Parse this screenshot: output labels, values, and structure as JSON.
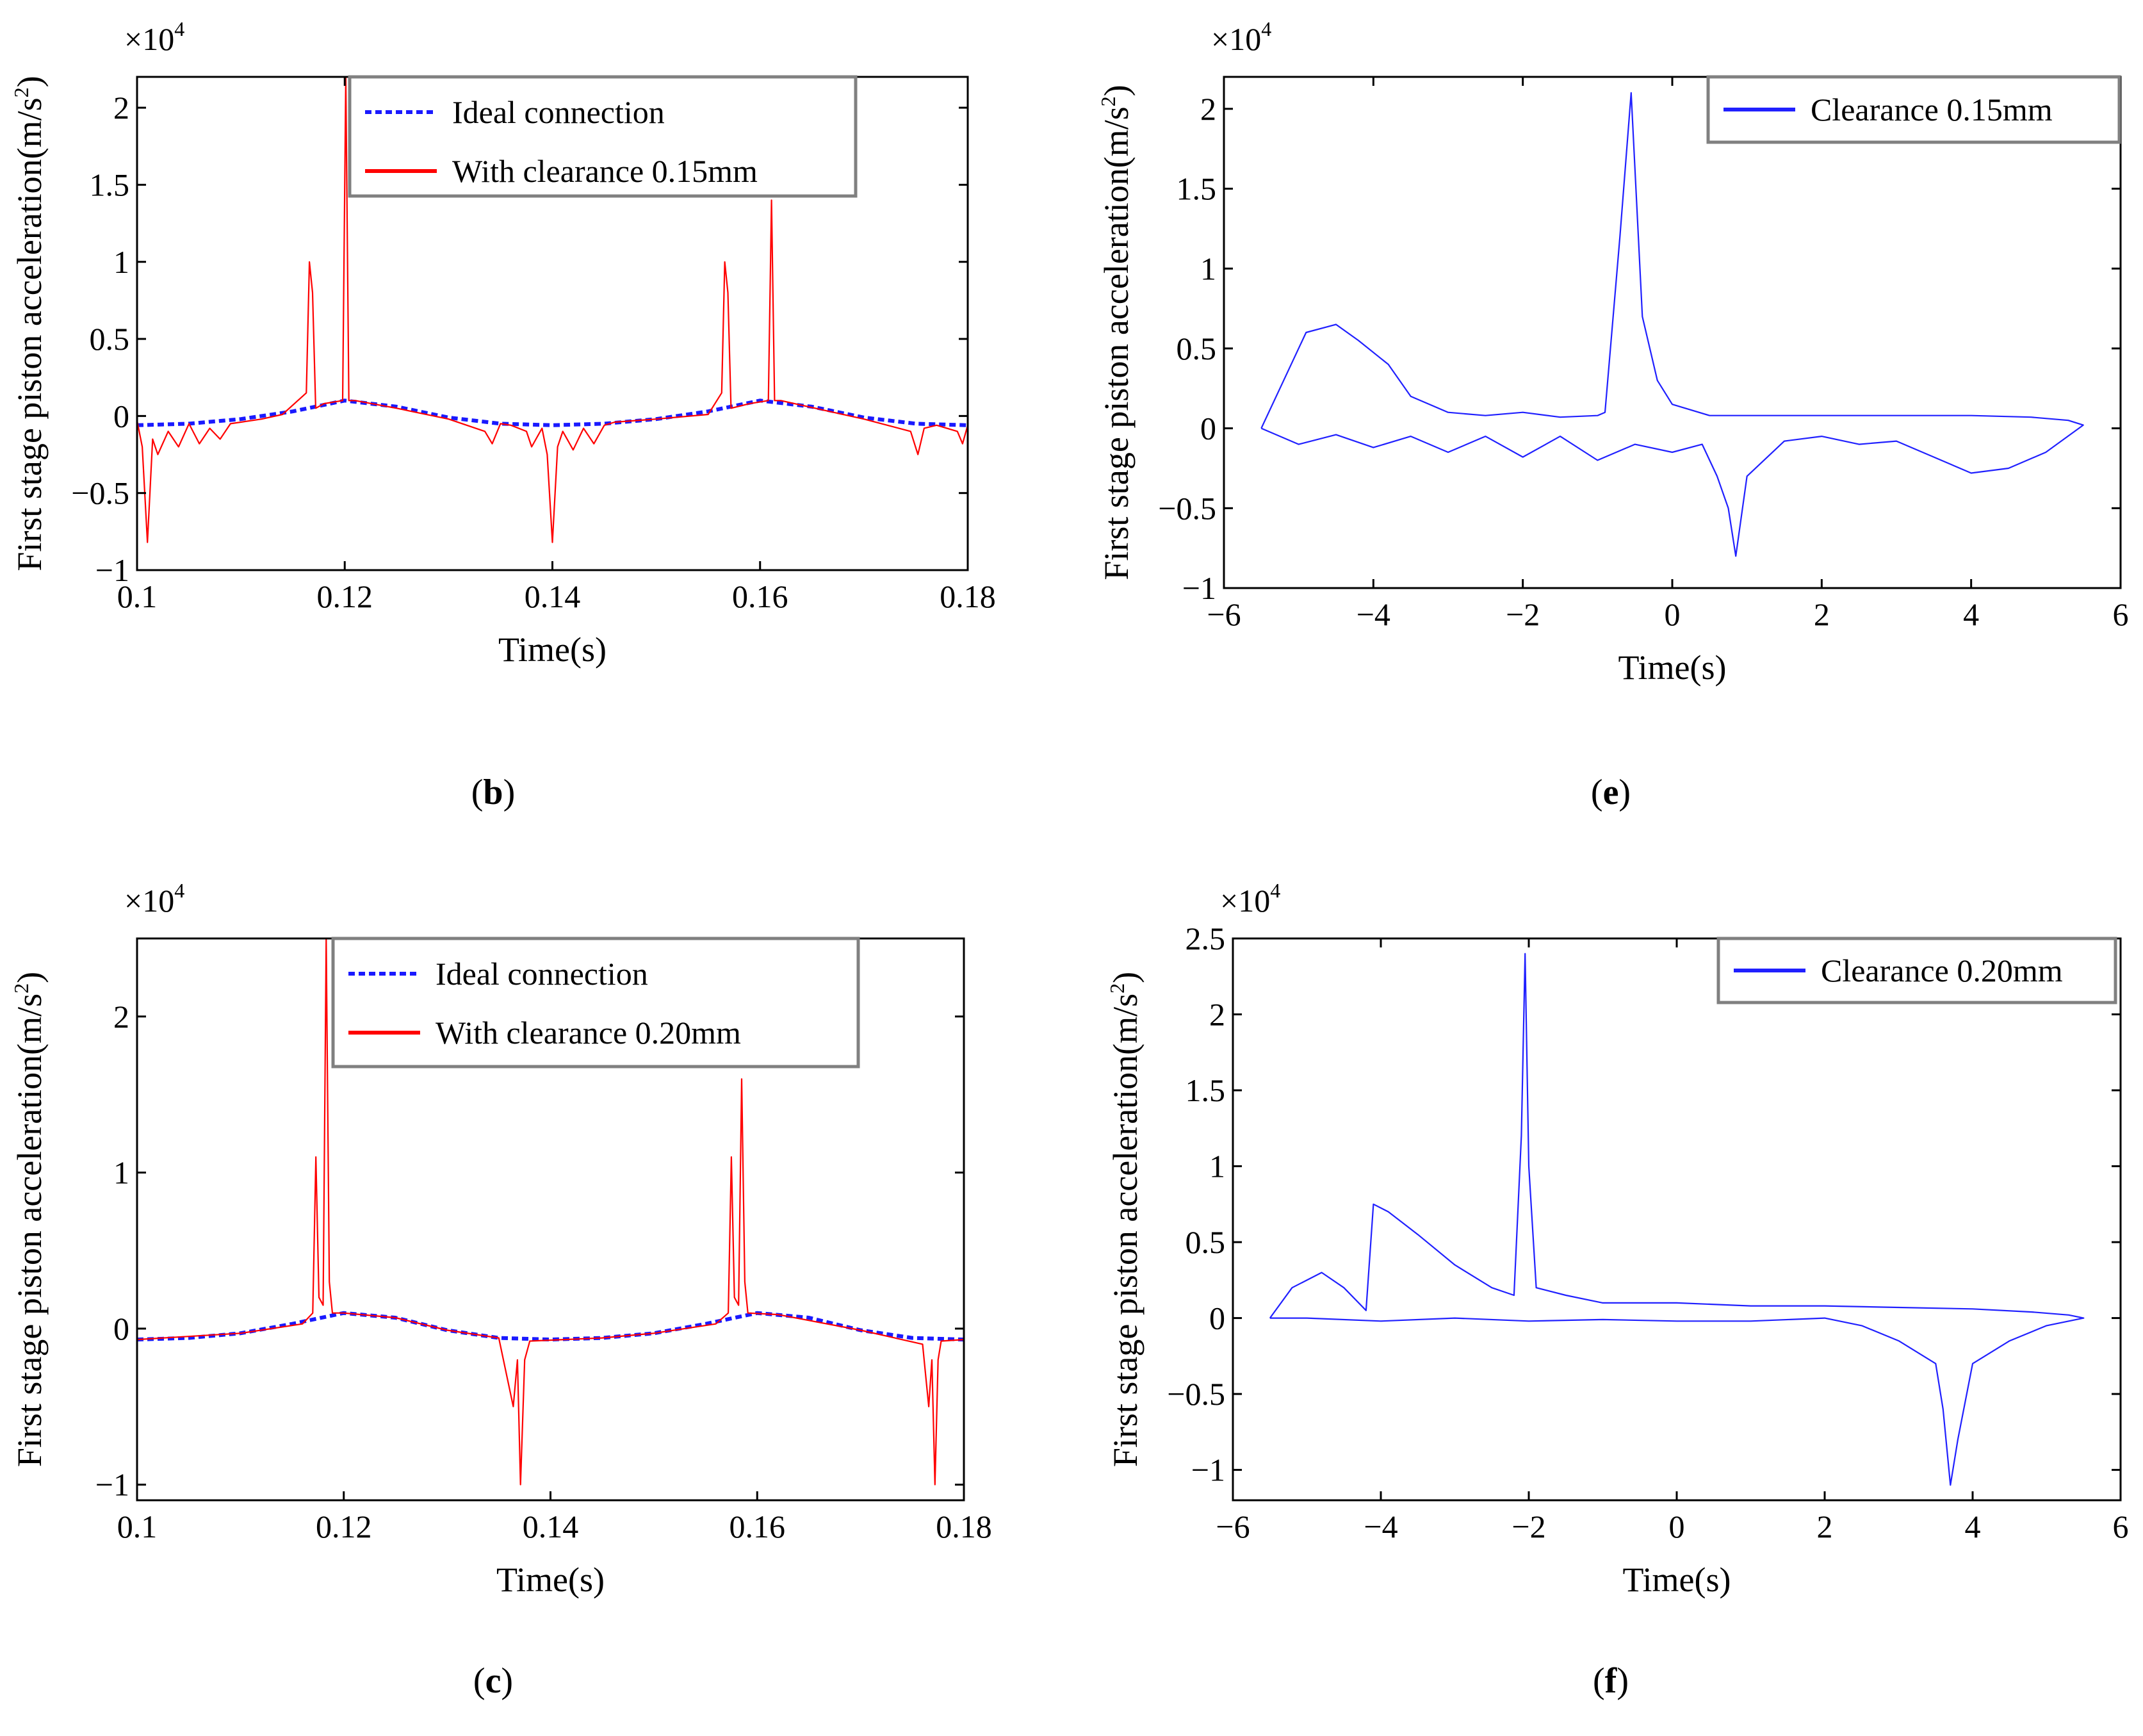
{
  "figure": {
    "panels": [
      {
        "id": "b",
        "caption": "(b)",
        "caption_letter": "b"
      },
      {
        "id": "e",
        "caption": "(e)",
        "caption_letter": "e"
      },
      {
        "id": "c",
        "caption": "(c)",
        "caption_letter": "c"
      },
      {
        "id": "f",
        "caption": "(f)",
        "caption_letter": "f"
      }
    ]
  },
  "colors": {
    "ideal": "#1a1aff",
    "clearance": "#ff0000",
    "phase": "#2020ff",
    "axis": "#000000",
    "legend_border": "#808080"
  },
  "chart_data": [
    {
      "panel": "b",
      "type": "line",
      "xlabel": "Time(s)",
      "ylabel": "First stage piston acceleration(m/s²)",
      "ylabel_main": "First stage piston acceleration(m/s",
      "ylabel_sup": "2",
      "ylabel_end": ")",
      "multiplier": "×10",
      "multiplier_exp": "4",
      "xlim": [
        0.1,
        0.18
      ],
      "ylim": [
        -1,
        2.2
      ],
      "xticks": [
        0.1,
        0.12,
        0.14,
        0.16,
        0.18
      ],
      "xtick_labels": [
        "0.1",
        "0.12",
        "0.14",
        "0.16",
        "0.18"
      ],
      "yticks": [
        -1,
        -0.5,
        0,
        0.5,
        1,
        1.5,
        2
      ],
      "ytick_labels": [
        "−1",
        "−0.5",
        "0",
        "0.5",
        "1",
        "1.5",
        "2"
      ],
      "legend": {
        "position": "top-right",
        "entries": [
          "Ideal connection",
          "With clearance 0.15mm"
        ]
      },
      "series": [
        {
          "name": "Ideal connection",
          "style": "dashed",
          "x": [
            0.1,
            0.105,
            0.11,
            0.115,
            0.12,
            0.125,
            0.13,
            0.135,
            0.14,
            0.145,
            0.15,
            0.155,
            0.16,
            0.165,
            0.17,
            0.175,
            0.18
          ],
          "y": [
            -0.06,
            -0.05,
            -0.02,
            0.03,
            0.1,
            0.06,
            -0.01,
            -0.05,
            -0.06,
            -0.05,
            -0.02,
            0.03,
            0.1,
            0.06,
            -0.01,
            -0.05,
            -0.06
          ]
        },
        {
          "name": "With clearance 0.15mm",
          "style": "solid",
          "x": [
            0.1,
            0.1005,
            0.101,
            0.1015,
            0.102,
            0.103,
            0.104,
            0.105,
            0.106,
            0.107,
            0.108,
            0.109,
            0.11,
            0.112,
            0.114,
            0.1163,
            0.1166,
            0.1169,
            0.1172,
            0.118,
            0.1198,
            0.1201,
            0.1204,
            0.121,
            0.125,
            0.13,
            0.1335,
            0.1342,
            0.135,
            0.136,
            0.1375,
            0.138,
            0.139,
            0.1395,
            0.14,
            0.1405,
            0.141,
            0.142,
            0.143,
            0.144,
            0.145,
            0.146,
            0.15,
            0.155,
            0.1563,
            0.1566,
            0.1569,
            0.1572,
            0.159,
            0.1608,
            0.1611,
            0.1614,
            0.162,
            0.166,
            0.17,
            0.1745,
            0.1752,
            0.1758,
            0.177,
            0.179,
            0.1795,
            0.18
          ],
          "y": [
            -0.03,
            -0.2,
            -0.82,
            -0.15,
            -0.25,
            -0.1,
            -0.2,
            -0.05,
            -0.18,
            -0.08,
            -0.15,
            -0.05,
            -0.04,
            -0.02,
            0.01,
            0.15,
            1.0,
            0.8,
            0.05,
            0.08,
            0.1,
            2.2,
            0.1,
            0.1,
            0.05,
            -0.02,
            -0.1,
            -0.18,
            -0.05,
            -0.06,
            -0.1,
            -0.2,
            -0.08,
            -0.25,
            -0.82,
            -0.2,
            -0.1,
            -0.22,
            -0.08,
            -0.18,
            -0.06,
            -0.04,
            -0.02,
            0.01,
            0.15,
            1.0,
            0.8,
            0.05,
            0.08,
            0.1,
            1.4,
            0.1,
            0.1,
            0.04,
            -0.02,
            -0.1,
            -0.25,
            -0.08,
            -0.06,
            -0.1,
            -0.18,
            -0.06
          ]
        }
      ]
    },
    {
      "panel": "e",
      "type": "line",
      "xlabel": "Time(s)",
      "ylabel": "First stage piston acceleration(m/s²)",
      "ylabel_main": "First stage piston acceleration(m/s",
      "ylabel_sup": "2",
      "ylabel_end": ")",
      "multiplier": "×10",
      "multiplier_exp": "4",
      "xlim": [
        -6,
        6
      ],
      "ylim": [
        -1,
        2.2
      ],
      "xticks": [
        -6,
        -4,
        -2,
        0,
        2,
        4,
        6
      ],
      "xtick_labels": [
        "−6",
        "−4",
        "−2",
        "0",
        "2",
        "4",
        "6"
      ],
      "yticks": [
        -1,
        -0.5,
        0,
        0.5,
        1,
        1.5,
        2
      ],
      "ytick_labels": [
        "−1",
        "−0.5",
        "0",
        "0.5",
        "1",
        "1.5",
        "2"
      ],
      "legend": {
        "position": "top-right",
        "entries": [
          "Clearance 0.15mm"
        ]
      },
      "series": [
        {
          "name": "Clearance 0.15mm",
          "style": "solid",
          "x": [
            -5.5,
            -5.2,
            -4.9,
            -4.5,
            -4.2,
            -3.8,
            -3.5,
            -3.0,
            -2.5,
            -2.0,
            -1.5,
            -1.0,
            -0.9,
            -0.7,
            -0.55,
            -0.4,
            -0.2,
            0.0,
            0.5,
            1.0,
            2.0,
            3.0,
            4.0,
            4.8,
            5.3,
            5.5,
            5.0,
            4.5,
            4.0,
            3.5,
            3.0,
            2.5,
            2.0,
            1.5,
            1.0,
            0.85,
            0.75,
            0.6,
            0.4,
            0.0,
            -0.5,
            -1.0,
            -1.5,
            -2.0,
            -2.5,
            -3.0,
            -3.5,
            -4.0,
            -4.5,
            -5.0,
            -5.5
          ],
          "y": [
            0.0,
            0.3,
            0.6,
            0.65,
            0.55,
            0.4,
            0.2,
            0.1,
            0.08,
            0.1,
            0.07,
            0.08,
            0.1,
            1.2,
            2.1,
            0.7,
            0.3,
            0.15,
            0.08,
            0.08,
            0.08,
            0.08,
            0.08,
            0.07,
            0.05,
            0.02,
            -0.15,
            -0.25,
            -0.28,
            -0.18,
            -0.08,
            -0.1,
            -0.05,
            -0.08,
            -0.3,
            -0.8,
            -0.5,
            -0.3,
            -0.1,
            -0.15,
            -0.1,
            -0.2,
            -0.05,
            -0.18,
            -0.05,
            -0.15,
            -0.05,
            -0.12,
            -0.04,
            -0.1,
            0.0
          ]
        }
      ]
    },
    {
      "panel": "c",
      "type": "line",
      "xlabel": "Time(s)",
      "ylabel": "First stage piston acceleration(m/s²)",
      "ylabel_main": "First stage piston acceleration(m/s",
      "ylabel_sup": "2",
      "ylabel_end": ")",
      "multiplier": "×10",
      "multiplier_exp": "4",
      "xlim": [
        0.1,
        0.18
      ],
      "ylim": [
        -1.1,
        2.5
      ],
      "xticks": [
        0.1,
        0.12,
        0.14,
        0.16,
        0.18
      ],
      "xtick_labels": [
        "0.1",
        "0.12",
        "0.14",
        "0.16",
        "0.18"
      ],
      "yticks": [
        -1,
        0,
        1,
        2
      ],
      "ytick_labels": [
        "−1",
        "0",
        "1",
        "2"
      ],
      "legend": {
        "position": "top-right",
        "entries": [
          "Ideal connection",
          "With clearance 0.20mm"
        ]
      },
      "series": [
        {
          "name": "Ideal connection",
          "style": "dashed",
          "x": [
            0.1,
            0.105,
            0.11,
            0.115,
            0.12,
            0.125,
            0.13,
            0.135,
            0.14,
            0.145,
            0.15,
            0.155,
            0.16,
            0.165,
            0.17,
            0.175,
            0.18
          ],
          "y": [
            -0.07,
            -0.06,
            -0.03,
            0.03,
            0.1,
            0.07,
            -0.01,
            -0.06,
            -0.07,
            -0.06,
            -0.03,
            0.03,
            0.1,
            0.07,
            -0.01,
            -0.06,
            -0.07
          ]
        },
        {
          "name": "With clearance 0.20mm",
          "style": "solid",
          "x": [
            0.1,
            0.11,
            0.116,
            0.117,
            0.1173,
            0.1176,
            0.118,
            0.1183,
            0.1186,
            0.1189,
            0.12,
            0.125,
            0.13,
            0.135,
            0.1364,
            0.1368,
            0.1371,
            0.1375,
            0.138,
            0.145,
            0.15,
            0.156,
            0.1572,
            0.1575,
            0.1578,
            0.1582,
            0.1585,
            0.1588,
            0.1591,
            0.162,
            0.17,
            0.176,
            0.1766,
            0.1769,
            0.1772,
            0.1775,
            0.1778,
            0.18
          ],
          "y": [
            -0.07,
            -0.03,
            0.03,
            0.1,
            1.1,
            0.2,
            0.15,
            2.5,
            0.3,
            0.1,
            0.1,
            0.07,
            -0.01,
            -0.06,
            -0.5,
            -0.2,
            -1.0,
            -0.2,
            -0.08,
            -0.06,
            -0.03,
            0.03,
            0.1,
            1.1,
            0.2,
            0.15,
            1.6,
            0.3,
            0.1,
            0.09,
            -0.01,
            -0.1,
            -0.5,
            -0.2,
            -1.0,
            -0.2,
            -0.08,
            -0.07
          ]
        }
      ]
    },
    {
      "panel": "f",
      "type": "line",
      "xlabel": "Time(s)",
      "ylabel": "First stage piston acceleration(m/s²)",
      "ylabel_main": "First stage piston acceleration(m/s",
      "ylabel_sup": "2",
      "ylabel_end": ")",
      "multiplier": "×10",
      "multiplier_exp": "4",
      "xlim": [
        -6,
        6
      ],
      "ylim": [
        -1.2,
        2.5
      ],
      "xticks": [
        -6,
        -4,
        -2,
        0,
        2,
        4,
        6
      ],
      "xtick_labels": [
        "−6",
        "−4",
        "−2",
        "0",
        "2",
        "4",
        "6"
      ],
      "yticks": [
        -1,
        -0.5,
        0,
        0.5,
        1,
        1.5,
        2,
        2.5
      ],
      "ytick_labels": [
        "−1",
        "−0.5",
        "0",
        "0.5",
        "1",
        "1.5",
        "2",
        "2.5"
      ],
      "legend": {
        "position": "top-right",
        "entries": [
          "Clearance 0.20mm"
        ]
      },
      "series": [
        {
          "name": "Clearance 0.20mm",
          "style": "solid",
          "x": [
            -5.5,
            -5.2,
            -4.8,
            -4.5,
            -4.2,
            -4.1,
            -3.9,
            -3.5,
            -3.0,
            -2.5,
            -2.2,
            -2.1,
            -2.05,
            -2.0,
            -1.9,
            -1.5,
            -1.0,
            0.0,
            1.0,
            2.0,
            3.0,
            4.0,
            4.8,
            5.3,
            5.5,
            5.0,
            4.5,
            4.0,
            3.8,
            3.7,
            3.6,
            3.5,
            3.0,
            2.5,
            2.0,
            1.0,
            0.0,
            -1.0,
            -2.0,
            -3.0,
            -4.0,
            -5.0,
            -5.5
          ],
          "y": [
            0.0,
            0.2,
            0.3,
            0.2,
            0.05,
            0.75,
            0.7,
            0.55,
            0.35,
            0.2,
            0.15,
            1.2,
            2.4,
            1.0,
            0.2,
            0.15,
            0.1,
            0.1,
            0.08,
            0.08,
            0.07,
            0.06,
            0.04,
            0.02,
            0.0,
            -0.05,
            -0.15,
            -0.3,
            -0.8,
            -1.1,
            -0.6,
            -0.3,
            -0.15,
            -0.05,
            0.0,
            -0.02,
            -0.02,
            -0.01,
            -0.02,
            0.0,
            -0.02,
            0.0,
            0.0
          ]
        }
      ]
    }
  ]
}
